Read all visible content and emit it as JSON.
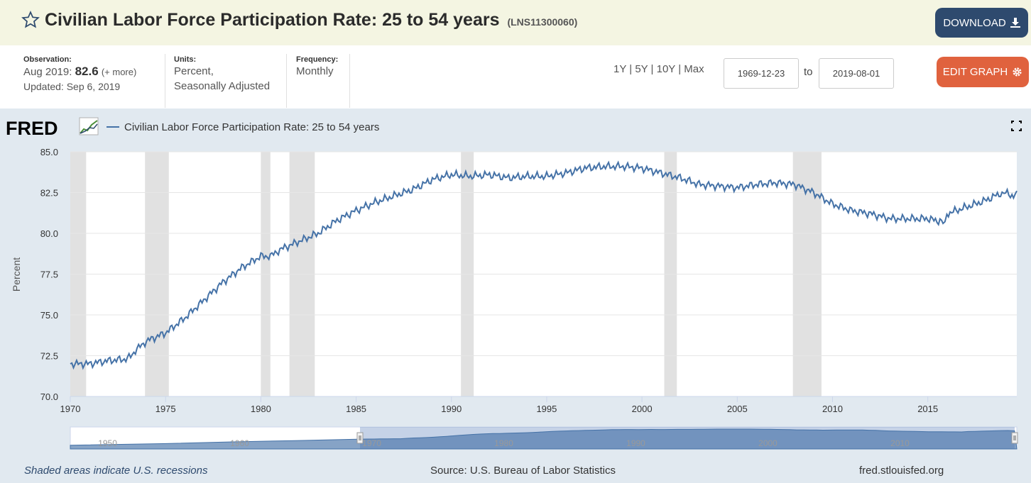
{
  "header": {
    "title": "Civilian Labor Force Participation Rate: 25 to 54 years",
    "series_id": "(LNS11300060)",
    "download_label": "DOWNLOAD",
    "bg_color": "#f4f5e2"
  },
  "meta": {
    "observation_label": "Observation:",
    "observation_date": "Aug 2019:",
    "observation_value": "82.6",
    "observation_more": "(+ more)",
    "updated": "Updated: Sep 6, 2019",
    "units_label": "Units:",
    "units_line1": "Percent,",
    "units_line2": "Seasonally Adjusted",
    "frequency_label": "Frequency:",
    "frequency_value": "Monthly"
  },
  "controls": {
    "range_links": [
      "1Y",
      "5Y",
      "10Y",
      "Max"
    ],
    "start_date": "1969-12-23",
    "to_label": "to",
    "end_date": "2019-08-01",
    "edit_label": "EDIT GRAPH"
  },
  "footer": {
    "recessions_note": "Shaded areas indicate U.S. recessions",
    "source": "Source: U.S. Bureau of Labor Statistics",
    "site": "fred.stlouisfed.org"
  },
  "colors": {
    "line": "#4572a7",
    "recession": "#e1e1e1",
    "panel_bg": "#e1e9f0",
    "download_bg": "#2e4a6e",
    "edit_bg": "#e0623e"
  },
  "chart_data": {
    "type": "line",
    "logo": "FRED",
    "legend": "Civilian Labor Force Participation Rate: 25 to 54 years",
    "ylabel": "Percent",
    "xlim": [
      1970.0,
      2019.67
    ],
    "ylim": [
      70.0,
      85.0
    ],
    "yticks": [
      "70.0",
      "72.5",
      "75.0",
      "77.5",
      "80.0",
      "82.5",
      "85.0"
    ],
    "xticks": [
      "1970",
      "1975",
      "1980",
      "1985",
      "1990",
      "1995",
      "2000",
      "2005",
      "2010",
      "2015"
    ],
    "grid": true,
    "recessions": [
      [
        1970.0,
        1970.83
      ],
      [
        1973.92,
        1975.17
      ],
      [
        1980.0,
        1980.5
      ],
      [
        1981.5,
        1982.83
      ],
      [
        1990.5,
        1991.17
      ],
      [
        2001.17,
        2001.83
      ],
      [
        2007.92,
        2009.42
      ]
    ],
    "series": [
      {
        "name": "Civilian Labor Force Participation Rate: 25 to 54 years",
        "x": [
          1970.0,
          1971.0,
          1972.0,
          1973.0,
          1973.5,
          1974.0,
          1975.0,
          1976.0,
          1977.0,
          1978.0,
          1979.0,
          1980.0,
          1980.5,
          1981.0,
          1982.0,
          1983.0,
          1984.0,
          1985.0,
          1986.0,
          1987.0,
          1988.0,
          1989.0,
          1990.0,
          1991.0,
          1992.0,
          1993.0,
          1994.0,
          1995.0,
          1996.0,
          1997.0,
          1998.0,
          1999.0,
          2000.0,
          2001.0,
          2002.0,
          2003.0,
          2004.0,
          2005.0,
          2006.0,
          2007.0,
          2008.0,
          2009.0,
          2010.0,
          2011.0,
          2012.0,
          2013.0,
          2014.0,
          2015.0,
          2015.8,
          2016.0,
          2017.0,
          2018.0,
          2018.9,
          2019.0,
          2019.5,
          2019.67
        ],
        "y": [
          72.0,
          72.0,
          72.2,
          72.3,
          72.9,
          73.4,
          73.9,
          74.8,
          75.9,
          77.0,
          77.9,
          78.6,
          78.6,
          79.0,
          79.5,
          80.0,
          80.8,
          81.4,
          81.9,
          82.3,
          82.7,
          83.3,
          83.6,
          83.5,
          83.6,
          83.4,
          83.5,
          83.5,
          83.7,
          84.0,
          84.1,
          84.1,
          84.0,
          83.7,
          83.4,
          83.0,
          82.9,
          82.8,
          83.0,
          83.1,
          83.0,
          82.5,
          81.8,
          81.4,
          81.2,
          80.9,
          80.9,
          80.9,
          80.7,
          81.2,
          81.6,
          82.0,
          82.5,
          82.5,
          82.3,
          82.6
        ]
      }
    ],
    "navigator": {
      "labels": [
        "1950",
        "1960",
        "1970",
        "1980",
        "1990",
        "2000",
        "2010"
      ]
    }
  }
}
